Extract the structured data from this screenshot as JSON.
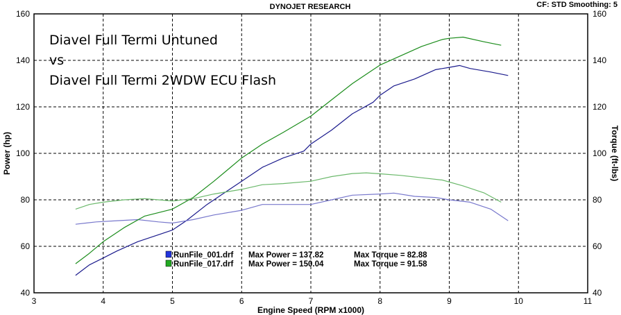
{
  "header": {
    "title": "DYNOJET RESEARCH",
    "settings": "CF: STD  Smoothing: 5"
  },
  "annotations": [
    "Diavel Full Termi Untuned",
    "vs",
    "Diavel Full Termi 2WDW ECU Flash"
  ],
  "legend": [
    {
      "file": "RunFile_001.drf",
      "power": "Max Power = 137.82",
      "torque": "Max Torque = 82.88",
      "color": "#1a1a8c"
    },
    {
      "file": "RunFile_017.drf",
      "power": "Max Power = 150.04",
      "torque": "Max Torque = 91.58",
      "color": "#1a8c1a"
    }
  ],
  "chart_data": {
    "type": "line",
    "title": "DYNOJET RESEARCH",
    "xlabel": "Engine Speed (RPM x1000)",
    "ylabel": "Power (hp)",
    "y2label": "Torque (ft-lbs)",
    "xlim": [
      3,
      11
    ],
    "ylim": [
      40,
      160
    ],
    "y2lim": [
      40,
      160
    ],
    "xticks": [
      "3",
      "4",
      "5",
      "6",
      "7",
      "8",
      "9",
      "10",
      "11"
    ],
    "yticks": [
      "40",
      "60",
      "80",
      "100",
      "120",
      "140",
      "160"
    ],
    "y2ticks": [
      "40",
      "60",
      "80",
      "100",
      "120",
      "140",
      "160"
    ],
    "grid": true,
    "series": [
      {
        "name": "RunFile_001.drf",
        "measure": "power",
        "color": "#1a1a8c",
        "x": [
          3.6,
          3.8,
          4.0,
          4.2,
          4.5,
          4.8,
          5.0,
          5.2,
          5.5,
          5.8,
          6.0,
          6.3,
          6.6,
          6.9,
          7.0,
          7.3,
          7.6,
          7.9,
          8.0,
          8.2,
          8.5,
          8.8,
          9.0,
          9.15,
          9.3,
          9.6,
          9.85
        ],
        "y": [
          47.5,
          52,
          55,
          58,
          62,
          65,
          67,
          71,
          78,
          84,
          88,
          94,
          98,
          101,
          104,
          110,
          117,
          122,
          125,
          129,
          132,
          136,
          137,
          137.8,
          136.5,
          135,
          133.5
        ]
      },
      {
        "name": "RunFile_001.drf",
        "measure": "torque",
        "color": "#7777cc",
        "x": [
          3.6,
          3.9,
          4.2,
          4.5,
          4.8,
          5.0,
          5.3,
          5.6,
          6.0,
          6.3,
          6.6,
          7.0,
          7.3,
          7.6,
          8.0,
          8.2,
          8.5,
          8.8,
          9.0,
          9.3,
          9.6,
          9.85
        ],
        "y": [
          69.5,
          70.5,
          71,
          71.5,
          70.5,
          70,
          71.5,
          73.5,
          75.5,
          78,
          78,
          78,
          80,
          82,
          82.5,
          82.9,
          81.5,
          81,
          80,
          79,
          76,
          71
        ]
      },
      {
        "name": "RunFile_017.drf",
        "measure": "power",
        "color": "#1a8c1a",
        "x": [
          3.6,
          3.8,
          4.0,
          4.3,
          4.6,
          5.0,
          5.3,
          5.6,
          5.8,
          6.0,
          6.3,
          6.6,
          7.0,
          7.3,
          7.6,
          7.9,
          8.0,
          8.3,
          8.6,
          8.9,
          9.0,
          9.2,
          9.5,
          9.75
        ],
        "y": [
          52.5,
          57,
          62,
          68,
          73,
          76,
          81,
          88,
          93,
          98,
          104,
          109,
          116,
          123,
          130,
          136,
          138,
          142,
          146,
          149,
          149.5,
          150,
          148,
          146.5
        ]
      },
      {
        "name": "RunFile_017.drf",
        "measure": "torque",
        "color": "#6ab86a",
        "x": [
          3.6,
          3.8,
          4.0,
          4.3,
          4.6,
          4.8,
          5.0,
          5.3,
          5.6,
          6.0,
          6.3,
          6.6,
          7.0,
          7.3,
          7.6,
          7.8,
          8.0,
          8.3,
          8.6,
          8.9,
          9.2,
          9.5,
          9.75
        ],
        "y": [
          76,
          78,
          79,
          80,
          80.5,
          80,
          79.5,
          80.5,
          82.5,
          84.5,
          86.5,
          87,
          88,
          90,
          91.3,
          91.6,
          91.2,
          90.5,
          89.5,
          88.5,
          86,
          83,
          79
        ]
      }
    ]
  }
}
